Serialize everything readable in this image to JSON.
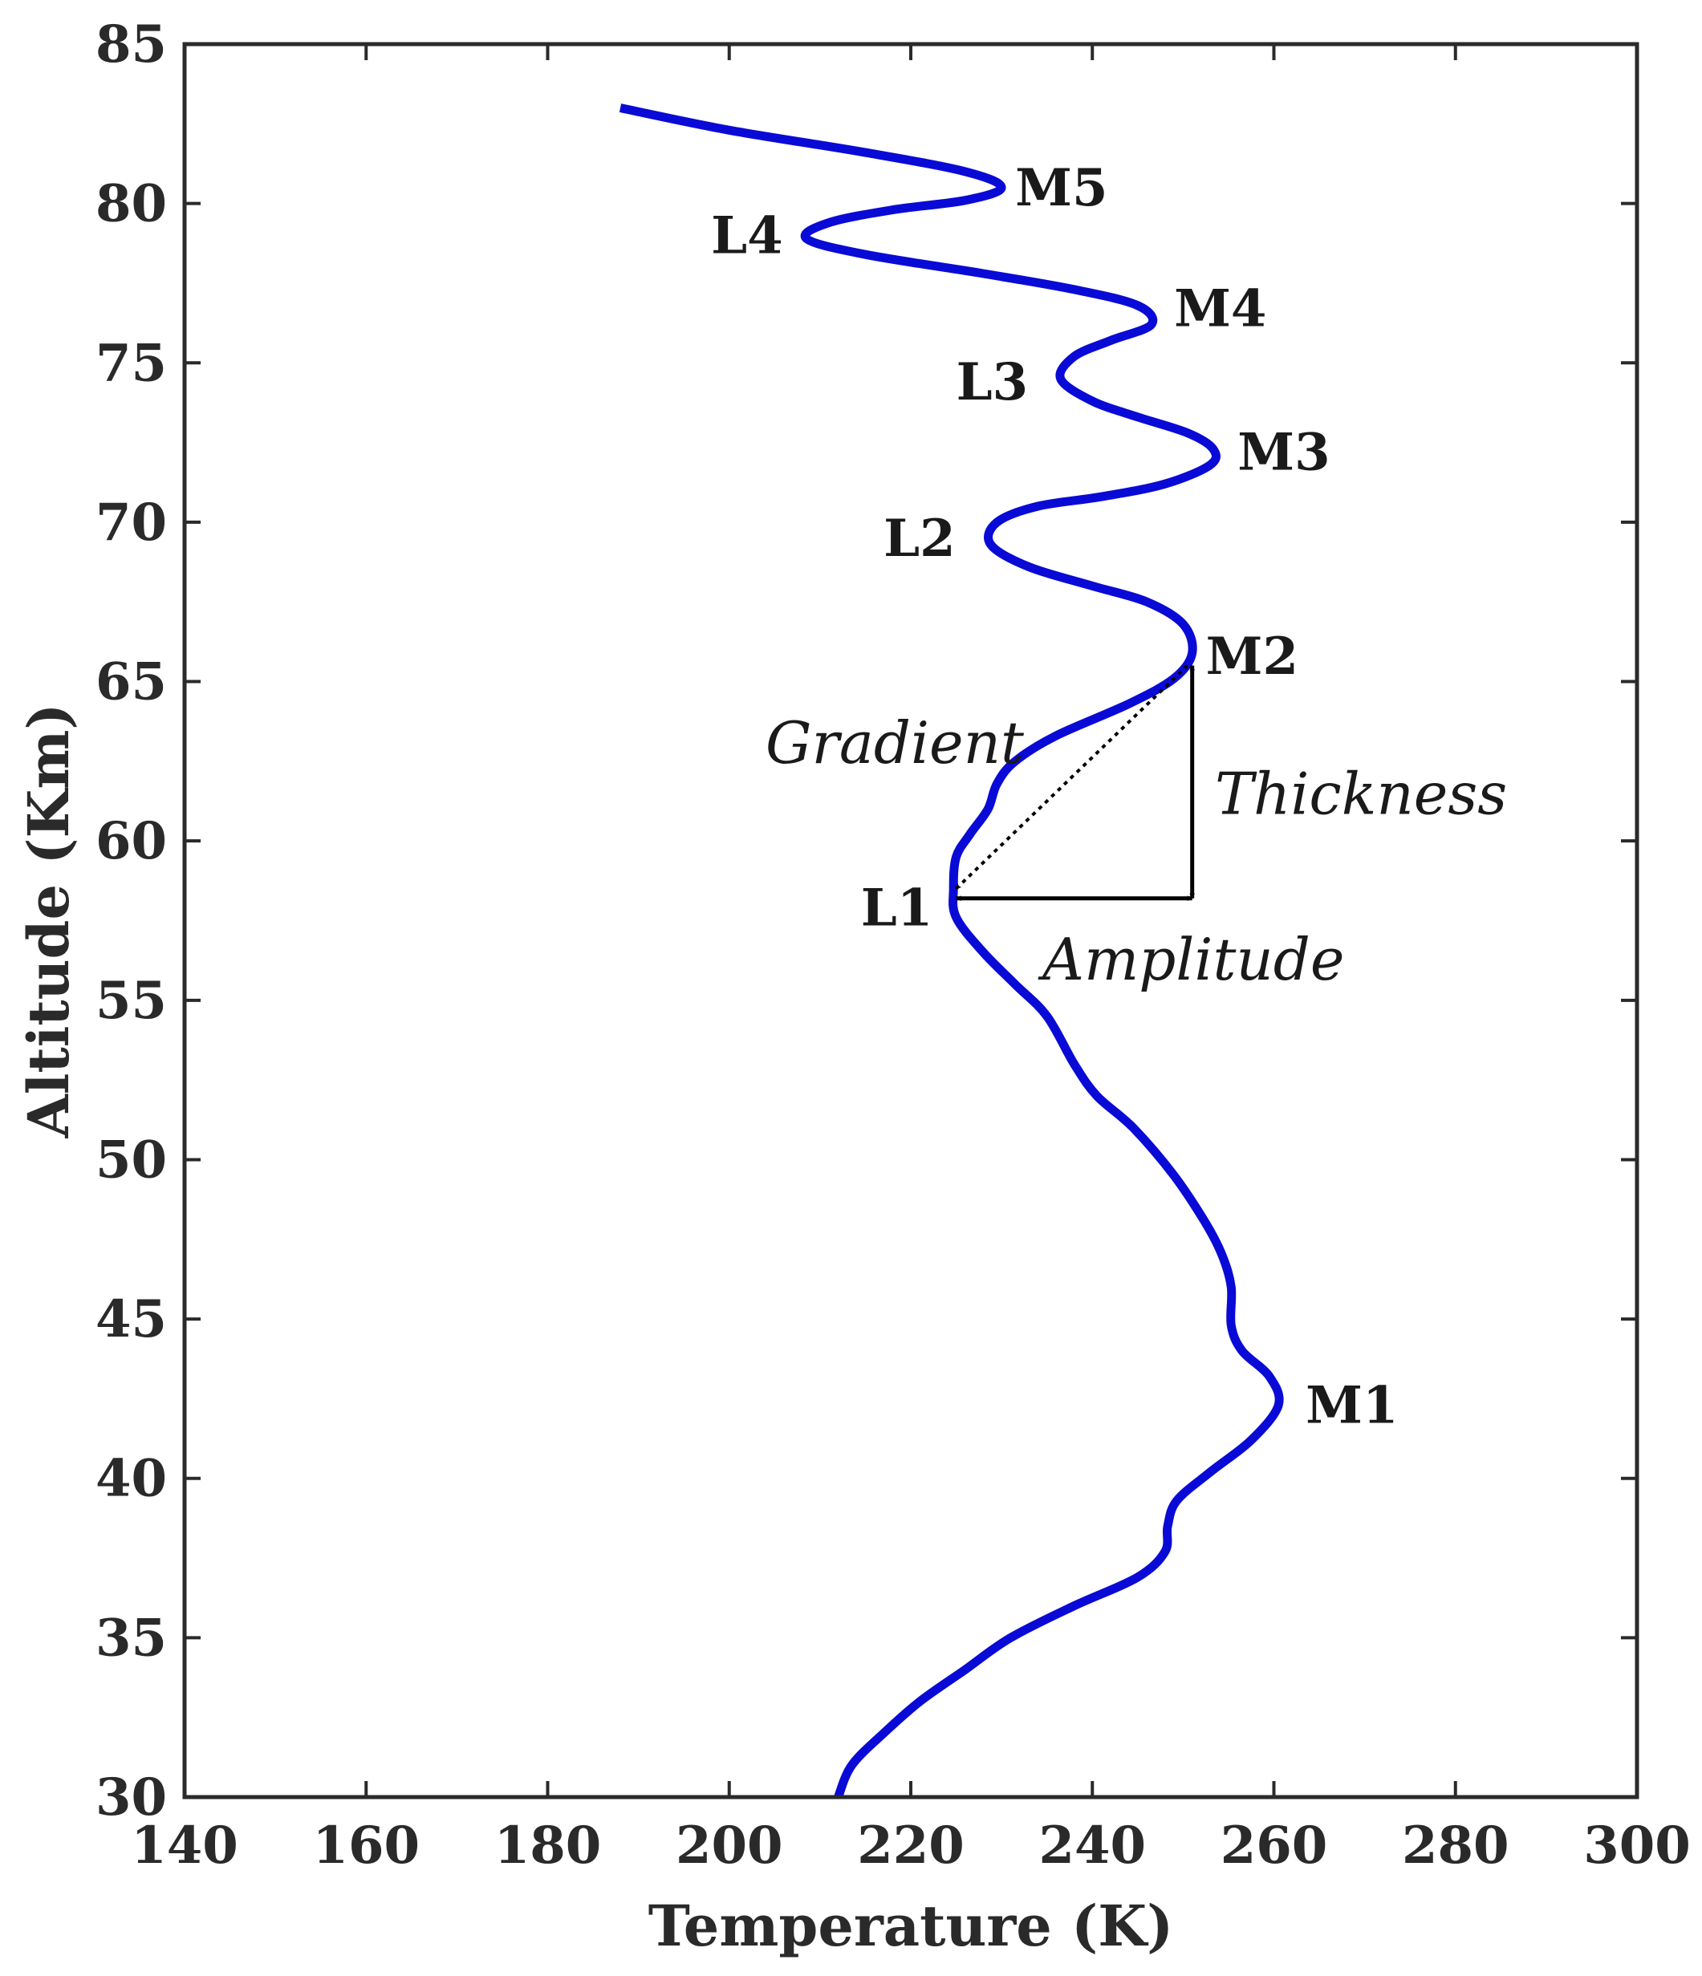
{
  "chart_data": {
    "type": "line",
    "title": "",
    "xlabel": "Temperature  (K)",
    "ylabel": "Altitude  (Km)",
    "xlim": [
      140,
      300
    ],
    "ylim": [
      30,
      85
    ],
    "xticks": [
      140,
      160,
      180,
      200,
      220,
      240,
      260,
      280,
      300
    ],
    "yticks": [
      30,
      35,
      40,
      45,
      50,
      55,
      60,
      65,
      70,
      75,
      80,
      85
    ],
    "grid": false,
    "series_color": "#0a0ad6",
    "series": [
      {
        "name": "Temperature profile",
        "points": [
          [
            212,
            30
          ],
          [
            213.5,
            31
          ],
          [
            217,
            32
          ],
          [
            221,
            33
          ],
          [
            226,
            34
          ],
          [
            231,
            35
          ],
          [
            238,
            36
          ],
          [
            245,
            36.9
          ],
          [
            248,
            37.7
          ],
          [
            248.3,
            38.5
          ],
          [
            249.3,
            39.3
          ],
          [
            253,
            40.2
          ],
          [
            257.5,
            41.2
          ],
          [
            260.5,
            42.3
          ],
          [
            259.5,
            43.2
          ],
          [
            256.5,
            44
          ],
          [
            255.3,
            44.8
          ],
          [
            255.3,
            46
          ],
          [
            254.3,
            47
          ],
          [
            252.5,
            48
          ],
          [
            249,
            49.5
          ],
          [
            244.5,
            51
          ],
          [
            240.5,
            52
          ],
          [
            238,
            53
          ],
          [
            235,
            54.5
          ],
          [
            231.5,
            55.5
          ],
          [
            228,
            56.5
          ],
          [
            225,
            57.6
          ],
          [
            224.7,
            58.5
          ],
          [
            225,
            59.5
          ],
          [
            226.5,
            60.2
          ],
          [
            228.5,
            61
          ],
          [
            229.5,
            61.8
          ],
          [
            231.5,
            62.5
          ],
          [
            236,
            63.3
          ],
          [
            244,
            64.3
          ],
          [
            249,
            65.1
          ],
          [
            251,
            65.9
          ],
          [
            250,
            66.8
          ],
          [
            246,
            67.5
          ],
          [
            240,
            68
          ],
          [
            233,
            68.6
          ],
          [
            228.8,
            69.3
          ],
          [
            229.5,
            70
          ],
          [
            234,
            70.5
          ],
          [
            241,
            70.8
          ],
          [
            248,
            71.2
          ],
          [
            253,
            71.8
          ],
          [
            253.3,
            72.3
          ],
          [
            250.5,
            72.8
          ],
          [
            245,
            73.3
          ],
          [
            240,
            73.8
          ],
          [
            236.5,
            74.5
          ],
          [
            238,
            75.2
          ],
          [
            242,
            75.7
          ],
          [
            246.5,
            76.2
          ],
          [
            245,
            76.8
          ],
          [
            238,
            77.3
          ],
          [
            228,
            77.8
          ],
          [
            215,
            78.4
          ],
          [
            208.5,
            78.9
          ],
          [
            211,
            79.4
          ],
          [
            218,
            79.8
          ],
          [
            226,
            80.1
          ],
          [
            230,
            80.5
          ],
          [
            226,
            81
          ],
          [
            215,
            81.6
          ],
          [
            200,
            82.3
          ],
          [
            188,
            83
          ]
        ]
      }
    ],
    "annotations": [
      {
        "name": "point-label-m5",
        "text": "M5",
        "x": 231.5,
        "y": 80.5
      },
      {
        "name": "point-label-l4",
        "text": "L4",
        "x": 198,
        "y": 79.0
      },
      {
        "name": "point-label-m4",
        "text": "M4",
        "x": 249,
        "y": 76.7
      },
      {
        "name": "point-label-l3",
        "text": "L3",
        "x": 225,
        "y": 74.4
      },
      {
        "name": "point-label-m3",
        "text": "M3",
        "x": 256,
        "y": 72.2
      },
      {
        "name": "point-label-l2",
        "text": "L2",
        "x": 217,
        "y": 69.5
      },
      {
        "name": "point-label-m2",
        "text": "M2",
        "x": 252.5,
        "y": 65.8
      },
      {
        "name": "point-label-l1",
        "text": "L1",
        "x": 214.5,
        "y": 57.9
      },
      {
        "name": "point-label-m1",
        "text": "M1",
        "x": 263.5,
        "y": 42.3
      },
      {
        "name": "annot-label-gradient",
        "text": "Gradient",
        "x": 204,
        "y": 63.0
      },
      {
        "name": "annot-label-thickness",
        "text": "Thickness",
        "x": 253.5,
        "y": 61.4
      },
      {
        "name": "annot-label-amplitude",
        "text": "Amplitude",
        "x": 234.5,
        "y": 56.2
      }
    ],
    "arrows": {
      "L1": [
        225,
        58.2
      ],
      "M2_base": [
        251,
        58.2
      ],
      "M2": [
        251,
        65.5
      ]
    }
  }
}
